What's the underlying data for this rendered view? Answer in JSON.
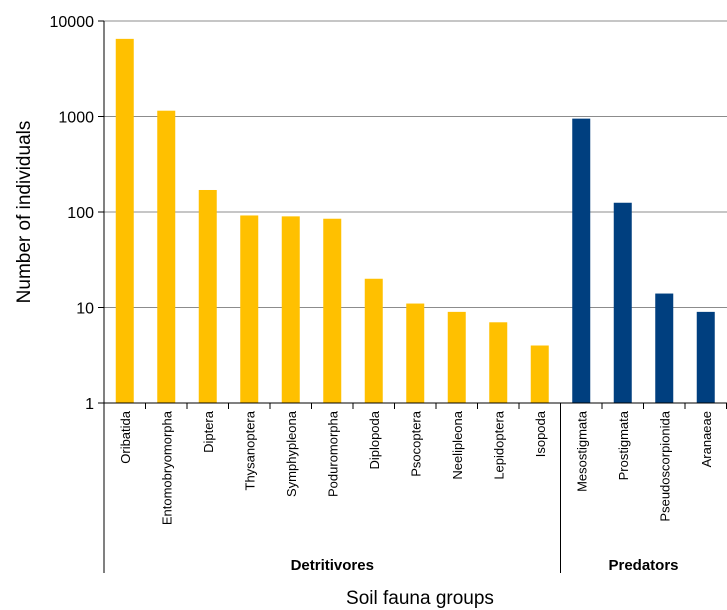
{
  "chart_data": {
    "type": "bar",
    "ylabel": "Number of individuals",
    "xlabel": "Soil fauna groups",
    "yscale": "log",
    "ylim": [
      1,
      10000
    ],
    "yticks": [
      "1",
      "10",
      "100",
      "1000",
      "10000"
    ],
    "grid": true,
    "categories": [
      "Oribatida",
      "Entomobryomorpha",
      "Diptera",
      "Thysanoptera",
      "Symphypleona",
      "Poduromorpha",
      "Diplopoda",
      "Psocoptera",
      "Neelipleona",
      "Lepidoptera",
      "Isopoda",
      "Mesostigmata",
      "Prostigmata",
      "Pseudoscorpionida",
      "Aranaeae"
    ],
    "values": [
      6500,
      1150,
      170,
      92,
      90,
      85,
      20,
      11,
      9,
      7,
      4,
      950,
      125,
      14,
      9
    ],
    "groups": [
      {
        "label": "Detritivores",
        "count": 11,
        "color": "#FFC000"
      },
      {
        "label": "Predators",
        "count": 4,
        "color": "#003F7F"
      }
    ]
  }
}
